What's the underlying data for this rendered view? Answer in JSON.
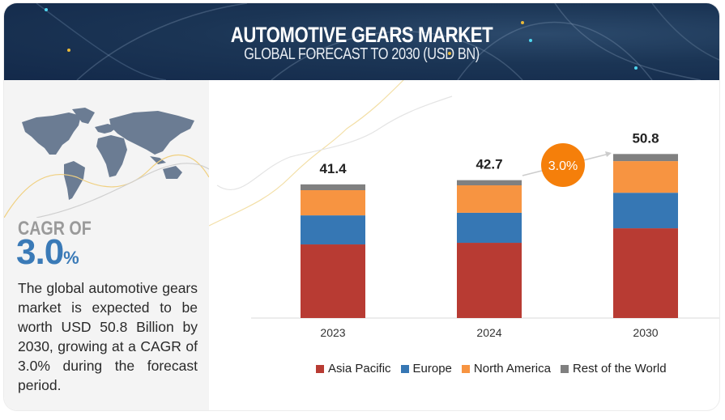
{
  "header": {
    "title": "AUTOMOTIVE GEARS MARKET",
    "subtitle": "GLOBAL FORECAST TO 2030 (USD BN)"
  },
  "summary": {
    "cagr_label": "CAGR OF",
    "cagr_value": "3.0",
    "cagr_unit": "%",
    "description": "The global automotive gears market is expected to be worth USD 50.8 Billion by 2030, growing at a CAGR of 3.0% during the forecast period."
  },
  "colors": {
    "asia_pacific": "#b83b33",
    "europe": "#3677b4",
    "north_america": "#f79441",
    "rest_of_world": "#808080",
    "cagr_bubble": "#f57f0a",
    "cagr_text": "#3a7ab7"
  },
  "chart_data": {
    "type": "bar",
    "stacked": true,
    "title": "AUTOMOTIVE GEARS MARKET",
    "subtitle": "GLOBAL FORECAST TO 2030 (USD BN)",
    "xlabel": "",
    "ylabel": "",
    "categories": [
      "2023",
      "2024",
      "2030"
    ],
    "totals": [
      "41.4",
      "42.7",
      "50.8"
    ],
    "series": [
      {
        "name": "Asia Pacific",
        "values": [
          22.8,
          23.3,
          27.8
        ]
      },
      {
        "name": "Europe",
        "values": [
          9.0,
          9.3,
          11.0
        ]
      },
      {
        "name": "North America",
        "values": [
          7.8,
          8.5,
          9.8
        ]
      },
      {
        "name": "Rest of the World",
        "values": [
          1.8,
          1.6,
          2.2
        ]
      }
    ],
    "ylim": [
      0,
      55
    ],
    "grid": false,
    "legend": "bottom",
    "annotation": "3.0%"
  }
}
